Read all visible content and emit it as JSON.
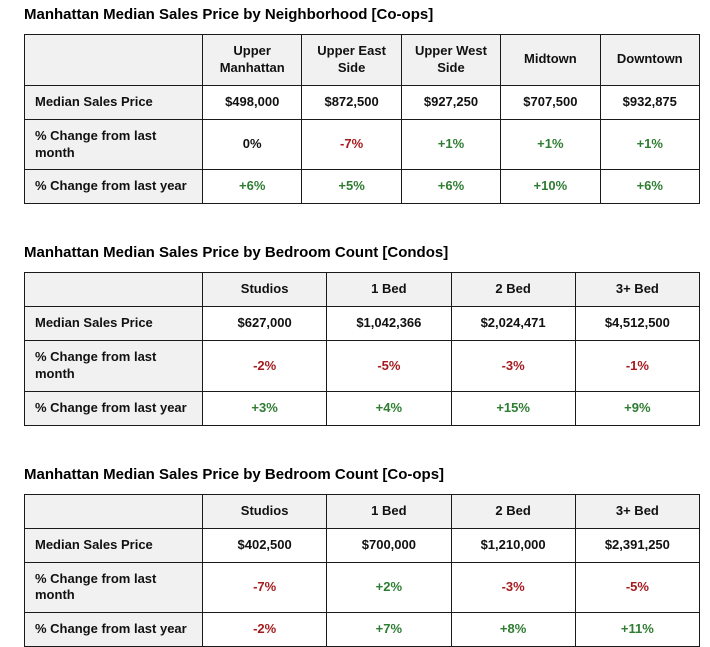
{
  "colors": {
    "positive": "#2e7d32",
    "negative": "#a61b1e",
    "neutral": "#111111",
    "header_bg": "#f1f1f2",
    "border": "#1a1a1a"
  },
  "tables": [
    {
      "title": "Manhattan Median Sales Price by Neighborhood [Co-ops]",
      "columns": [
        "Upper Manhattan",
        "Upper East Side",
        "Upper West Side",
        "Midtown",
        "Downtown"
      ],
      "rows": [
        {
          "label": "Median Sales Price",
          "values": [
            "$498,000",
            "$872,500",
            "$927,250",
            "$707,500",
            "$932,875"
          ],
          "tones": [
            "neutral",
            "neutral",
            "neutral",
            "neutral",
            "neutral"
          ]
        },
        {
          "label": "% Change from last month",
          "values": [
            "0%",
            "-7%",
            "+1%",
            "+1%",
            "+1%"
          ],
          "tones": [
            "neutral",
            "negative",
            "positive",
            "positive",
            "positive"
          ]
        },
        {
          "label": "% Change from last year",
          "values": [
            "+6%",
            "+5%",
            "+6%",
            "+10%",
            "+6%"
          ],
          "tones": [
            "positive",
            "positive",
            "positive",
            "positive",
            "positive"
          ]
        }
      ]
    },
    {
      "title": "Manhattan Median Sales Price by Bedroom Count [Condos]",
      "columns": [
        "Studios",
        "1 Bed",
        "2 Bed",
        "3+ Bed"
      ],
      "rows": [
        {
          "label": "Median Sales Price",
          "values": [
            "$627,000",
            "$1,042,366",
            "$2,024,471",
            "$4,512,500"
          ],
          "tones": [
            "neutral",
            "neutral",
            "neutral",
            "neutral"
          ]
        },
        {
          "label": "% Change from last month",
          "values": [
            "-2%",
            "-5%",
            "-3%",
            "-1%"
          ],
          "tones": [
            "negative",
            "negative",
            "negative",
            "negative"
          ]
        },
        {
          "label": "% Change from last year",
          "values": [
            "+3%",
            "+4%",
            "+15%",
            "+9%"
          ],
          "tones": [
            "positive",
            "positive",
            "positive",
            "positive"
          ]
        }
      ]
    },
    {
      "title": "Manhattan Median Sales Price by Bedroom Count [Co-ops]",
      "columns": [
        "Studios",
        "1 Bed",
        "2 Bed",
        "3+ Bed"
      ],
      "rows": [
        {
          "label": "Median Sales Price",
          "values": [
            "$402,500",
            "$700,000",
            "$1,210,000",
            "$2,391,250"
          ],
          "tones": [
            "neutral",
            "neutral",
            "neutral",
            "neutral"
          ]
        },
        {
          "label": "% Change from last month",
          "values": [
            "-7%",
            "+2%",
            "-3%",
            "-5%"
          ],
          "tones": [
            "negative",
            "positive",
            "negative",
            "negative"
          ]
        },
        {
          "label": "% Change from last year",
          "values": [
            "-2%",
            "+7%",
            "+8%",
            "+11%"
          ],
          "tones": [
            "negative",
            "positive",
            "positive",
            "positive"
          ]
        }
      ]
    }
  ]
}
